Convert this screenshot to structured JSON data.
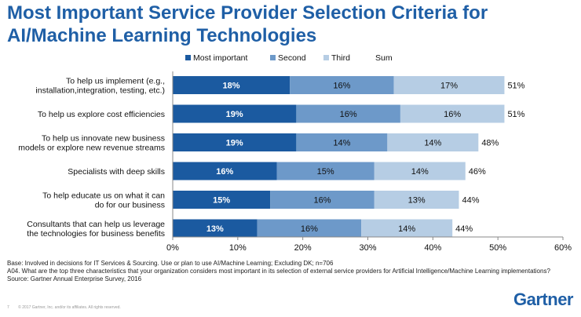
{
  "header": {
    "title_line1": "Most Important Service Provider Selection Criteria for",
    "title_line2": "AI/Machine Learning Technologies"
  },
  "chart_data": {
    "type": "bar",
    "orientation": "horizontal",
    "stacked": true,
    "categories": [
      [
        "To help us implement (e.g.,",
        "installation,integration, testing, etc.)"
      ],
      [
        "To help us explore cost efficiencies"
      ],
      [
        "To help us innovate new business",
        "models or explore new revenue streams"
      ],
      [
        "Specialists with deep skills"
      ],
      [
        "To help educate us on what it can",
        "do for our business"
      ],
      [
        "Consultants that can help us leverage",
        "the technologies for business benefits"
      ]
    ],
    "series": [
      {
        "name": "Most important",
        "color": "#1b5aa0",
        "values": [
          18,
          19,
          19,
          16,
          15,
          13
        ]
      },
      {
        "name": "Second",
        "color": "#6d99c9",
        "values": [
          16,
          16,
          14,
          15,
          16,
          16
        ]
      },
      {
        "name": "Third",
        "color": "#b6cde4",
        "values": [
          17,
          16,
          14,
          14,
          13,
          14
        ]
      }
    ],
    "sum": {
      "name": "Sum",
      "values": [
        51,
        51,
        48,
        46,
        44,
        44
      ]
    },
    "data_labels": [
      [
        "18%",
        "16%",
        "17%",
        "51%"
      ],
      [
        "19%",
        "16%",
        "16%",
        "51%"
      ],
      [
        "19%",
        "14%",
        "14%",
        "48%"
      ],
      [
        "16%",
        "15%",
        "14%",
        "46%"
      ],
      [
        "15%",
        "16%",
        "13%",
        "44%"
      ],
      [
        "13%",
        "16%",
        "14%",
        "44%"
      ]
    ],
    "xlim": [
      0,
      60
    ],
    "xticks": [
      "0%",
      "10%",
      "20%",
      "30%",
      "40%",
      "50%",
      "60%"
    ],
    "legend_position": "top"
  },
  "notes": {
    "base": "Base: Involved in decisions for IT Services & Sourcing. Use or plan to use AI/Machine Learning; Excluding DK; n=706",
    "question": "A04. What are the top three characteristics that your organization considers most important in its selection of external service providers for Artificial Intelligence/Machine Learning implementations?",
    "source": "Source: Gartner Annual Enterprise Survey, 2016"
  },
  "footer": {
    "page_number": "7",
    "copyright": "© 2017 Gartner, Inc. and/or its affiliates. All rights reserved.",
    "brand": "Gartner"
  }
}
